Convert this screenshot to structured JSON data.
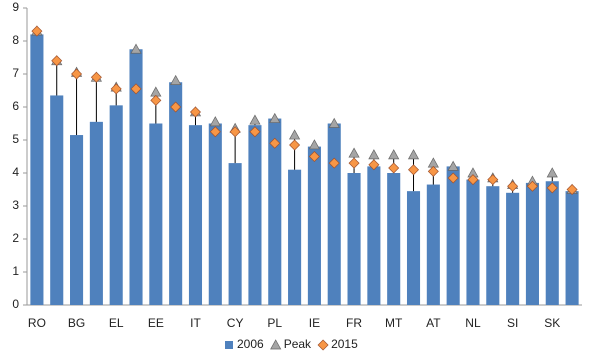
{
  "chart_data": {
    "type": "bar",
    "categories": [
      "RO",
      null,
      "BG",
      null,
      "EL",
      null,
      "EE",
      null,
      "IT",
      null,
      "CY",
      null,
      "PL",
      null,
      "IE",
      null,
      "FR",
      null,
      "MT",
      null,
      "AT",
      null,
      "NL",
      null,
      "SI",
      null,
      "SK",
      null
    ],
    "series": [
      {
        "name": "2006",
        "color": "#4f81bd",
        "values": [
          8.2,
          6.35,
          5.15,
          5.55,
          6.05,
          7.75,
          5.5,
          6.75,
          5.45,
          5.5,
          4.3,
          5.45,
          5.65,
          4.1,
          4.8,
          5.5,
          4.0,
          4.2,
          4.0,
          3.45,
          3.65,
          4.2,
          3.8,
          3.6,
          3.4,
          3.7,
          3.75,
          3.45
        ]
      },
      {
        "name": "Peak",
        "color": "#a5a5a5",
        "values": [
          8.3,
          7.4,
          7.05,
          6.9,
          6.6,
          7.75,
          6.45,
          6.8,
          5.85,
          5.55,
          5.35,
          5.6,
          5.65,
          5.15,
          4.85,
          5.5,
          4.6,
          4.55,
          4.55,
          4.55,
          4.3,
          4.2,
          4.0,
          3.85,
          3.65,
          3.75,
          4.0,
          3.5
        ]
      },
      {
        "name": "2015",
        "color": "#f79646",
        "values": [
          8.3,
          7.4,
          7.0,
          6.9,
          6.55,
          6.55,
          6.2,
          6.0,
          5.85,
          5.25,
          5.25,
          5.25,
          4.9,
          4.85,
          4.5,
          4.3,
          4.3,
          4.25,
          4.15,
          4.1,
          4.05,
          3.85,
          3.8,
          3.8,
          3.6,
          3.6,
          3.55,
          3.5
        ]
      }
    ],
    "ylim": [
      0,
      9
    ],
    "yticks": [
      0,
      1,
      2,
      3,
      4,
      5,
      6,
      7,
      8,
      9
    ],
    "legend": "bottom"
  }
}
